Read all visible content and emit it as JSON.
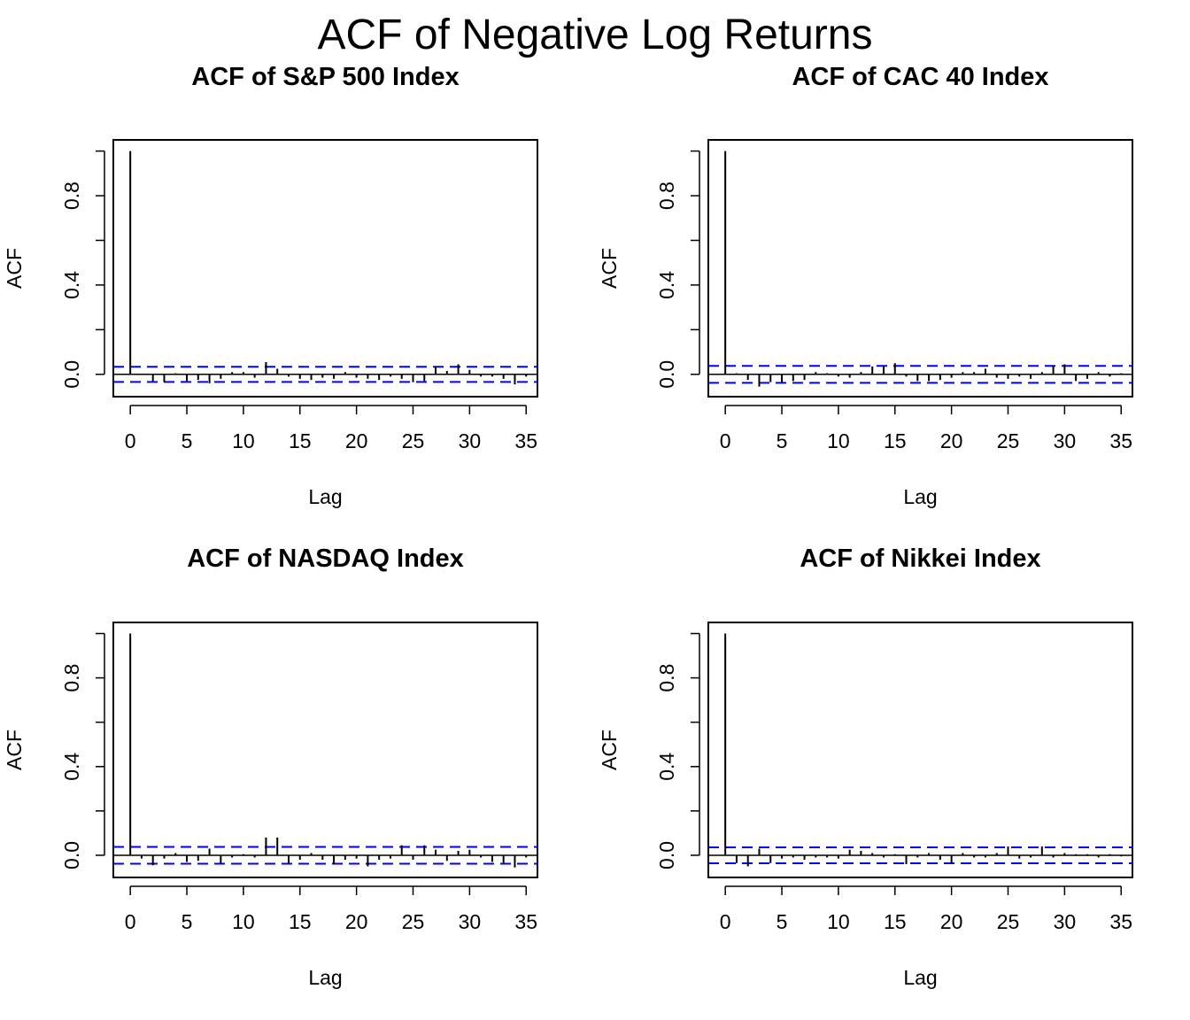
{
  "page_title": "ACF of Negative Log Returns",
  "chart_data": [
    {
      "type": "bar",
      "title": "ACF of S&P 500 Index",
      "xlabel": "Lag",
      "ylabel": "ACF",
      "xlim": [
        -1.5,
        36
      ],
      "ylim": [
        -0.1,
        1.05
      ],
      "x_ticks": [
        0,
        5,
        10,
        15,
        20,
        25,
        30,
        35
      ],
      "y_ticks": [
        0.0,
        0.4,
        0.8
      ],
      "y_ticks_all": [
        0.0,
        0.2,
        0.4,
        0.6,
        0.8,
        1.0
      ],
      "ci": 0.034,
      "colors": {
        "acf": "#000000",
        "ci": "#0000ff"
      },
      "lags": [
        0,
        1,
        2,
        3,
        4,
        5,
        6,
        7,
        8,
        9,
        10,
        11,
        12,
        13,
        14,
        15,
        16,
        17,
        18,
        19,
        20,
        21,
        22,
        23,
        24,
        25,
        26,
        27,
        28,
        29,
        30,
        31,
        32,
        33,
        34,
        35
      ],
      "values": [
        1.0,
        -0.003,
        -0.03,
        -0.035,
        0.005,
        -0.03,
        -0.025,
        -0.04,
        -0.02,
        0.01,
        0.01,
        -0.015,
        0.055,
        0.025,
        -0.01,
        -0.02,
        -0.025,
        -0.015,
        -0.02,
        0.01,
        -0.015,
        -0.02,
        -0.025,
        -0.01,
        -0.02,
        -0.035,
        -0.03,
        0.035,
        0.015,
        0.045,
        0.02,
        -0.01,
        -0.01,
        -0.02,
        -0.045,
        -0.01
      ]
    },
    {
      "type": "bar",
      "title": "ACF of CAC 40 Index",
      "xlabel": "Lag",
      "ylabel": "ACF",
      "xlim": [
        -1.5,
        36
      ],
      "ylim": [
        -0.1,
        1.05
      ],
      "x_ticks": [
        0,
        5,
        10,
        15,
        20,
        25,
        30,
        35
      ],
      "y_ticks": [
        0.0,
        0.4,
        0.8
      ],
      "y_ticks_all": [
        0.0,
        0.2,
        0.4,
        0.6,
        0.8,
        1.0
      ],
      "ci": 0.038,
      "colors": {
        "acf": "#000000",
        "ci": "#0000ff"
      },
      "lags": [
        0,
        1,
        2,
        3,
        4,
        5,
        6,
        7,
        8,
        9,
        10,
        11,
        12,
        13,
        14,
        15,
        16,
        17,
        18,
        19,
        20,
        21,
        22,
        23,
        24,
        25,
        26,
        27,
        28,
        29,
        30,
        31,
        32,
        33,
        34,
        35
      ],
      "values": [
        1.0,
        0.005,
        -0.025,
        -0.055,
        -0.035,
        -0.035,
        -0.03,
        -0.025,
        0.01,
        0.005,
        -0.01,
        -0.015,
        0.01,
        0.035,
        0.04,
        0.05,
        -0.01,
        -0.03,
        -0.03,
        -0.025,
        -0.015,
        0.01,
        0.01,
        0.025,
        -0.015,
        -0.02,
        -0.01,
        -0.02,
        0.01,
        0.04,
        0.045,
        -0.03,
        -0.02,
        0.01,
        -0.01,
        0.005
      ]
    },
    {
      "type": "bar",
      "title": "ACF of NASDAQ Index",
      "xlabel": "Lag",
      "ylabel": "ACF",
      "xlim": [
        -1.5,
        36
      ],
      "ylim": [
        -0.1,
        1.05
      ],
      "x_ticks": [
        0,
        5,
        10,
        15,
        20,
        25,
        30,
        35
      ],
      "y_ticks": [
        0.0,
        0.4,
        0.8
      ],
      "y_ticks_all": [
        0.0,
        0.2,
        0.4,
        0.6,
        0.8,
        1.0
      ],
      "ci": 0.038,
      "colors": {
        "acf": "#000000",
        "ci": "#0000ff"
      },
      "lags": [
        0,
        1,
        2,
        3,
        4,
        5,
        6,
        7,
        8,
        9,
        10,
        11,
        12,
        13,
        14,
        15,
        16,
        17,
        18,
        19,
        20,
        21,
        22,
        23,
        24,
        25,
        26,
        27,
        28,
        29,
        30,
        31,
        32,
        33,
        34,
        35
      ],
      "values": [
        1.0,
        -0.015,
        -0.045,
        -0.015,
        0.01,
        -0.03,
        -0.025,
        0.03,
        -0.035,
        -0.01,
        0.005,
        -0.01,
        0.08,
        0.08,
        -0.035,
        -0.02,
        0.01,
        -0.02,
        -0.04,
        -0.02,
        -0.015,
        -0.05,
        -0.02,
        -0.015,
        0.045,
        -0.02,
        0.045,
        0.025,
        -0.025,
        0.02,
        0.025,
        -0.01,
        -0.03,
        -0.035,
        -0.055,
        -0.01
      ]
    },
    {
      "type": "bar",
      "title": "ACF of Nikkei Index",
      "xlabel": "Lag",
      "ylabel": "ACF",
      "xlim": [
        -1.5,
        36
      ],
      "ylim": [
        -0.1,
        1.05
      ],
      "x_ticks": [
        0,
        5,
        10,
        15,
        20,
        25,
        30,
        35
      ],
      "y_ticks": [
        0.0,
        0.4,
        0.8
      ],
      "y_ticks_all": [
        0.0,
        0.2,
        0.4,
        0.6,
        0.8,
        1.0
      ],
      "ci": 0.036,
      "colors": {
        "acf": "#000000",
        "ci": "#0000ff"
      },
      "lags": [
        0,
        1,
        2,
        3,
        4,
        5,
        6,
        7,
        8,
        9,
        10,
        11,
        12,
        13,
        14,
        15,
        16,
        17,
        18,
        19,
        20,
        21,
        22,
        23,
        24,
        25,
        26,
        27,
        28,
        29,
        30,
        31,
        32,
        33,
        34,
        35
      ],
      "values": [
        1.0,
        -0.035,
        -0.05,
        0.03,
        -0.035,
        -0.015,
        -0.01,
        -0.02,
        -0.01,
        -0.01,
        -0.015,
        0.025,
        0.02,
        0.01,
        -0.01,
        0.005,
        -0.04,
        -0.01,
        0.01,
        -0.02,
        -0.035,
        0.01,
        -0.01,
        -0.01,
        0.01,
        0.04,
        -0.015,
        -0.01,
        0.04,
        -0.01,
        0.01,
        0.005,
        0.005,
        -0.01,
        0.005,
        -0.005
      ]
    }
  ]
}
